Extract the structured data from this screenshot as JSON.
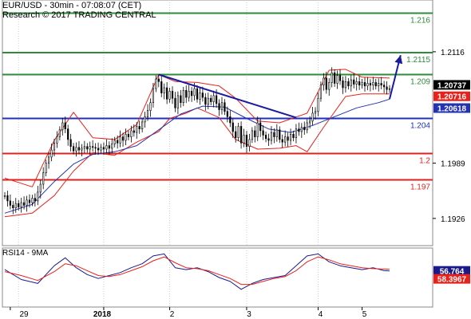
{
  "header": {
    "line1": "EUR/USD - 30min - 07:08:07 (CET)",
    "line2": "Research © 2017 TRADING CENTRAL"
  },
  "colors": {
    "resistance": "#2e8b3a",
    "pivot": "#1f2fbf",
    "support": "#e0201f",
    "bollinger": "#e8221b",
    "moving_average": "#2433b0",
    "trendline": "#1a1aa0",
    "rsi_line": "#1a1a8c",
    "rsi_signal": "#e8221b",
    "candle": "#000000",
    "grid": "#cfcfcf"
  },
  "chart_data": [
    {
      "type": "candlestick",
      "title": "EUR/USD - 30min",
      "xlabel": "",
      "ylabel": "",
      "x_ticks": [
        "29",
        "2018",
        "2",
        "3",
        "4",
        "5"
      ],
      "y_ticks": [
        {
          "value": 1.2116,
          "label": "1.2116"
        },
        {
          "value": 1.1989,
          "label": "1.1989"
        },
        {
          "value": 1.1926,
          "label": "1.1926"
        }
      ],
      "ylim": [
        1.1895,
        1.2175
      ],
      "levels": [
        {
          "value": 1.216,
          "label": "1.216",
          "kind": "resistance"
        },
        {
          "value": 1.2115,
          "label": "1.2115",
          "kind": "resistance"
        },
        {
          "value": 1.209,
          "label": "1.209",
          "kind": "resistance"
        },
        {
          "value": 1.204,
          "label": "1.204",
          "kind": "pivot"
        },
        {
          "value": 1.2,
          "label": "1.2",
          "kind": "support"
        },
        {
          "value": 1.197,
          "label": "1.197",
          "kind": "support"
        }
      ],
      "price_badges": [
        {
          "value": 1.20737,
          "label": "1.20737",
          "color": "#000000"
        },
        {
          "value": 1.20716,
          "label": "1.20716",
          "color": "#e8221b"
        },
        {
          "value": 1.20618,
          "label": "1.20618",
          "color": "#2433b0"
        }
      ],
      "close": [
        1.1952,
        1.1946,
        1.1941,
        1.1938,
        1.1943,
        1.1939,
        1.1944,
        1.1941,
        1.1947,
        1.1944,
        1.1949,
        1.1946,
        1.1956,
        1.1965,
        1.1978,
        1.1989,
        1.1996,
        1.2004,
        1.2012,
        1.2019,
        1.2027,
        1.2035,
        1.2028,
        1.2016,
        1.2008,
        1.2003,
        1.2007,
        1.2004,
        1.2006,
        1.2008,
        1.2005,
        1.2008,
        1.2007,
        1.2006,
        1.2004,
        1.2007,
        1.2005,
        1.2009,
        1.2006,
        1.2011,
        1.2015,
        1.2012,
        1.2019,
        1.2015,
        1.2022,
        1.2019,
        1.2026,
        1.2024,
        1.2031,
        1.2028,
        1.2036,
        1.2042,
        1.2049,
        1.2058,
        1.2074,
        1.2085,
        1.2082,
        1.2069,
        1.2075,
        1.2062,
        1.2071,
        1.2063,
        1.2052,
        1.2066,
        1.2058,
        1.2072,
        1.2064,
        1.2071,
        1.2066,
        1.2074,
        1.2062,
        1.2069,
        1.2064,
        1.2056,
        1.2063,
        1.2059,
        1.2066,
        1.2057,
        1.205,
        1.2058,
        1.2048,
        1.2042,
        1.2035,
        1.2025,
        1.2018,
        1.2031,
        1.2012,
        1.2021,
        1.2008,
        1.2016,
        1.2026,
        1.2019,
        1.2035,
        1.2026,
        1.2021,
        1.2017,
        1.2015,
        1.2024,
        1.2019,
        1.2027,
        1.2016,
        1.2013,
        1.2019,
        1.2015,
        1.2022,
        1.2018,
        1.2028,
        1.2025,
        1.203,
        1.2027,
        1.2035,
        1.2037,
        1.2046,
        1.2048,
        1.2063,
        1.2078,
        1.2086,
        1.2073,
        1.2081,
        1.2092,
        1.208,
        1.2089,
        1.2083,
        1.2075,
        1.2082,
        1.2077,
        1.2084,
        1.2079,
        1.2082,
        1.2078,
        1.2081,
        1.2077,
        1.208,
        1.2078,
        1.2081,
        1.2077,
        1.208,
        1.2078,
        1.2076,
        1.2073,
        1.2074
      ],
      "series": [
        {
          "name": "Bollinger upper",
          "points": [
            [
              0,
              1.1972
            ],
            [
              10,
              1.1962
            ],
            [
              18,
              1.2015
            ],
            [
              25,
              1.2047
            ],
            [
              32,
              1.2018
            ],
            [
              40,
              1.2016
            ],
            [
              48,
              1.2033
            ],
            [
              56,
              1.209
            ],
            [
              62,
              1.2082
            ],
            [
              70,
              1.2081
            ],
            [
              78,
              1.2077
            ],
            [
              84,
              1.2063
            ],
            [
              92,
              1.2037
            ],
            [
              100,
              1.2035
            ],
            [
              110,
              1.2046
            ],
            [
              118,
              1.2095
            ],
            [
              124,
              1.2096
            ],
            [
              130,
              1.2087
            ],
            [
              140,
              1.2086
            ]
          ]
        },
        {
          "name": "Bollinger lower",
          "points": [
            [
              0,
              1.1928
            ],
            [
              10,
              1.1932
            ],
            [
              18,
              1.1952
            ],
            [
              25,
              1.198
            ],
            [
              32,
              1.2001
            ],
            [
              40,
              1.1998
            ],
            [
              48,
              1.2013
            ],
            [
              56,
              1.2025
            ],
            [
              60,
              1.204
            ],
            [
              66,
              1.2046
            ],
            [
              70,
              1.2052
            ],
            [
              78,
              1.2041
            ],
            [
              84,
              1.2016
            ],
            [
              92,
              1.2005
            ],
            [
              100,
              1.2006
            ],
            [
              106,
              1.2009
            ],
            [
              110,
              1.2002
            ],
            [
              116,
              1.203
            ],
            [
              124,
              1.2065
            ],
            [
              130,
              1.2068
            ],
            [
              140,
              1.2068
            ]
          ]
        },
        {
          "name": "Moving average",
          "points": [
            [
              0,
              1.1932
            ],
            [
              10,
              1.1942
            ],
            [
              18,
              1.1968
            ],
            [
              25,
              1.1988
            ],
            [
              32,
              1.1999
            ],
            [
              40,
              1.2002
            ],
            [
              48,
              1.2009
            ],
            [
              56,
              1.2027
            ],
            [
              64,
              1.2045
            ],
            [
              72,
              1.2054
            ],
            [
              80,
              1.2053
            ],
            [
              88,
              1.204
            ],
            [
              96,
              1.2028
            ],
            [
              104,
              1.2024
            ],
            [
              112,
              1.2032
            ],
            [
              120,
              1.2042
            ],
            [
              128,
              1.2052
            ],
            [
              136,
              1.2058
            ],
            [
              140,
              1.2062
            ]
          ]
        },
        {
          "name": "Trendline",
          "points": [
            [
              56,
              1.209
            ],
            [
              106,
              1.2041
            ]
          ]
        },
        {
          "name": "Projection",
          "points": [
            [
              140,
              1.2062
            ],
            [
              142,
              1.2087
            ],
            [
              144,
              1.2112
            ]
          ]
        }
      ]
    },
    {
      "type": "line",
      "title": "RSI14 - 9MA",
      "xlabel": "",
      "ylabel": "",
      "ylim": [
        20,
        80
      ],
      "badges": [
        {
          "value": 56.764,
          "label": "56.764",
          "color": "#1a1a8c"
        },
        {
          "value": 58.3967,
          "label": "58.3967",
          "color": "#e8221b"
        }
      ],
      "series": [
        {
          "name": "RSI14",
          "points": [
            [
              0,
              58
            ],
            [
              6,
              48
            ],
            [
              12,
              44
            ],
            [
              18,
              62
            ],
            [
              22,
              70
            ],
            [
              26,
              60
            ],
            [
              30,
              53
            ],
            [
              34,
              49
            ],
            [
              38,
              52
            ],
            [
              42,
              55
            ],
            [
              46,
              60
            ],
            [
              50,
              64
            ],
            [
              54,
              72
            ],
            [
              58,
              74
            ],
            [
              62,
              60
            ],
            [
              66,
              58
            ],
            [
              70,
              60
            ],
            [
              74,
              56
            ],
            [
              78,
              50
            ],
            [
              82,
              46
            ],
            [
              86,
              38
            ],
            [
              90,
              44
            ],
            [
              94,
              48
            ],
            [
              98,
              50
            ],
            [
              102,
              52
            ],
            [
              106,
              62
            ],
            [
              110,
              72
            ],
            [
              114,
              74
            ],
            [
              118,
              66
            ],
            [
              122,
              62
            ],
            [
              126,
              60
            ],
            [
              130,
              58
            ],
            [
              134,
              60
            ],
            [
              138,
              57
            ],
            [
              140,
              56.764
            ]
          ]
        },
        {
          "name": "9MA",
          "points": [
            [
              0,
              56
            ],
            [
              6,
              52
            ],
            [
              12,
              47
            ],
            [
              18,
              56
            ],
            [
              22,
              64
            ],
            [
              26,
              62
            ],
            [
              30,
              57
            ],
            [
              34,
              52
            ],
            [
              38,
              51
            ],
            [
              42,
              53
            ],
            [
              46,
              57
            ],
            [
              50,
              61
            ],
            [
              54,
              67
            ],
            [
              58,
              71
            ],
            [
              62,
              65
            ],
            [
              66,
              60
            ],
            [
              70,
              59
            ],
            [
              74,
              57
            ],
            [
              78,
              53
            ],
            [
              82,
              49
            ],
            [
              86,
              43
            ],
            [
              90,
              43
            ],
            [
              94,
              46
            ],
            [
              98,
              49
            ],
            [
              102,
              51
            ],
            [
              106,
              57
            ],
            [
              110,
              66
            ],
            [
              114,
              71
            ],
            [
              118,
              68
            ],
            [
              122,
              64
            ],
            [
              126,
              62
            ],
            [
              130,
              60
            ],
            [
              134,
              59
            ],
            [
              138,
              58.6
            ],
            [
              140,
              58.3967
            ]
          ]
        }
      ]
    }
  ]
}
